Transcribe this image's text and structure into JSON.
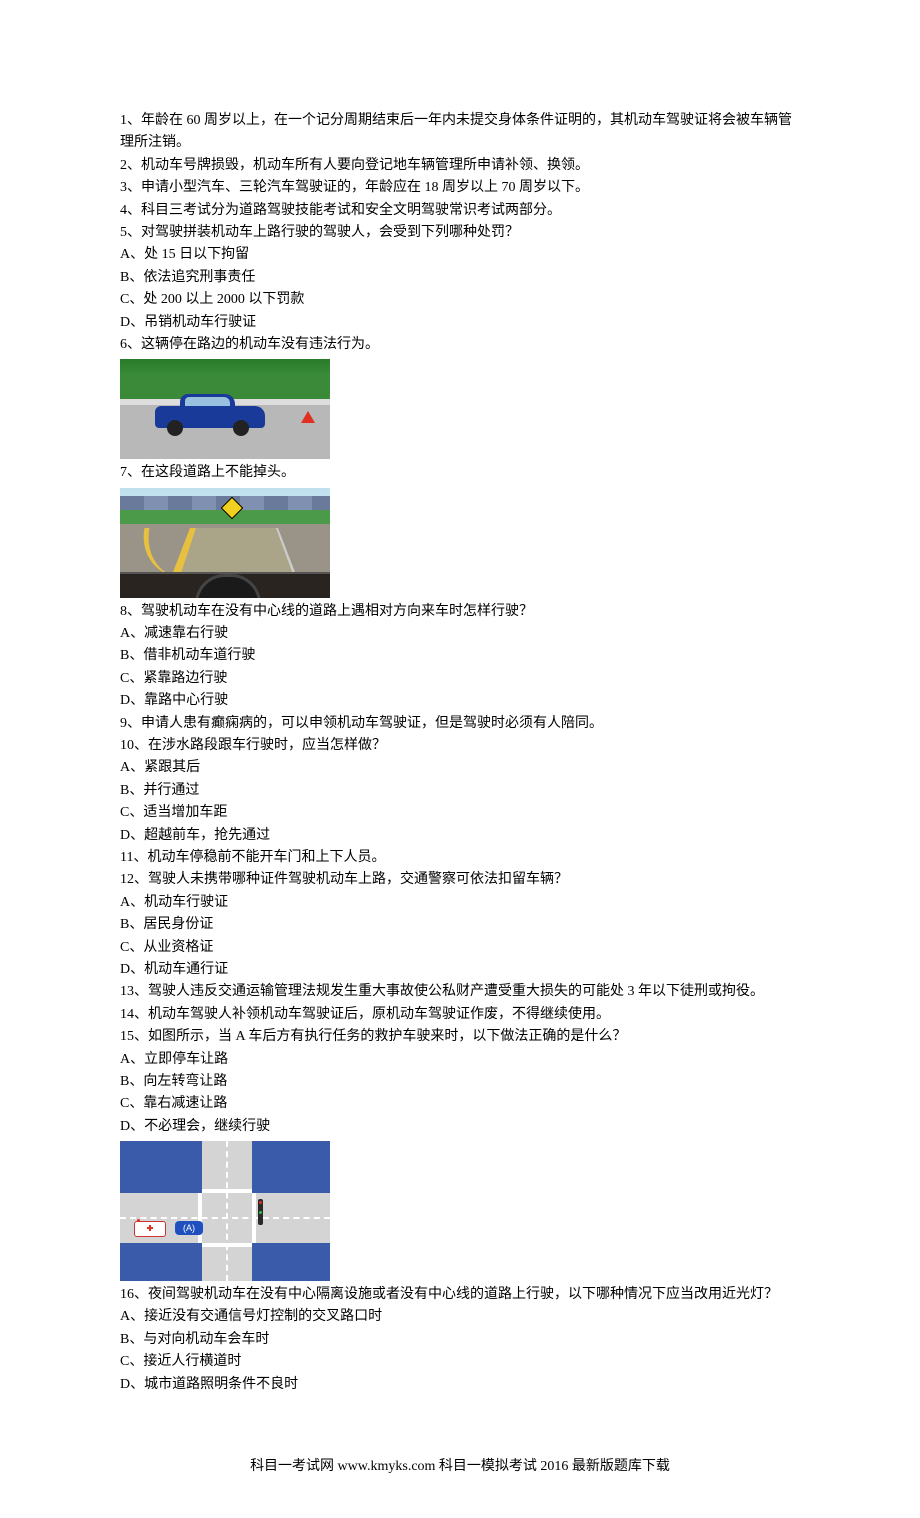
{
  "q1": "1、年龄在 60 周岁以上，在一个记分周期结束后一年内未提交身体条件证明的，其机动车驾驶证将会被车辆管理所注销。",
  "q2": "2、机动车号牌损毁，机动车所有人要向登记地车辆管理所申请补领、换领。",
  "q3": "3、申请小型汽车、三轮汽车驾驶证的，年龄应在 18 周岁以上 70 周岁以下。",
  "q4": "4、科目三考试分为道路驾驶技能考试和安全文明驾驶常识考试两部分。",
  "q5": "5、对驾驶拼装机动车上路行驶的驾驶人，会受到下列哪种处罚？",
  "q5a": "A、处 15 日以下拘留",
  "q5b": "B、依法追究刑事责任",
  "q5c": "C、处 200 以上 2000 以下罚款",
  "q5d": "D、吊销机动车行驶证",
  "q6": "6、这辆停在路边的机动车没有违法行为。",
  "q7": "7、在这段道路上不能掉头。",
  "q8": "8、驾驶机动车在没有中心线的道路上遇相对方向来车时怎样行驶？",
  "q8a": "A、减速靠右行驶",
  "q8b": "B、借非机动车道行驶",
  "q8c": "C、紧靠路边行驶",
  "q8d": "D、靠路中心行驶",
  "q9": "9、申请人患有癫痫病的，可以申领机动车驾驶证，但是驾驶时必须有人陪同。",
  "q10": "10、在涉水路段跟车行驶时，应当怎样做？",
  "q10a": "A、紧跟其后",
  "q10b": "B、并行通过",
  "q10c": "C、适当增加车距",
  "q10d": "D、超越前车，抢先通过",
  "q11": "11、机动车停稳前不能开车门和上下人员。",
  "q12": "12、驾驶人未携带哪种证件驾驶机动车上路，交通警察可依法扣留车辆？",
  "q12a": "A、机动车行驶证",
  "q12b": "B、居民身份证",
  "q12c": "C、从业资格证",
  "q12d": "D、机动车通行证",
  "q13": "13、驾驶人违反交通运输管理法规发生重大事故使公私财产遭受重大损失的可能处 3 年以下徒刑或拘役。",
  "q14": "14、机动车驾驶人补领机动车驾驶证后，原机动车驾驶证作废，不得继续使用。",
  "q15": "15、如图所示，当 A 车后方有执行任务的救护车驶来时，以下做法正确的是什么？",
  "q15a": "A、立即停车让路",
  "q15b": "B、向左转弯让路",
  "q15c": "C、靠右减速让路",
  "q15d": "D、不必理会，继续行驶",
  "carA_label": "(A)",
  "q16": "16、夜间驾驶机动车在没有中心隔离设施或者没有中心线的道路上行驶，以下哪种情况下应当改用近光灯？",
  "q16a": "A、接近没有交通信号灯控制的交叉路口时",
  "q16b": "B、与对向机动车会车时",
  "q16c": "C、接近人行横道时",
  "q16d": "D、城市道路照明条件不良时",
  "footer": "科目一考试网 www.kmyks.com 科目一模拟考试 2016 最新版题库下载"
}
